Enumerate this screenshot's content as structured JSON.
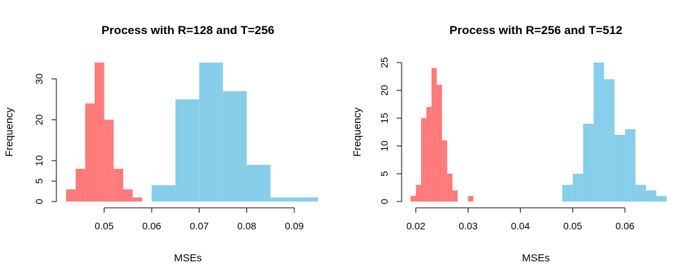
{
  "colors": {
    "red": "#FF7B7B",
    "blue": "#87CEEB"
  },
  "chart_data": [
    {
      "type": "histogram",
      "title": "Process with R=128 and T=256",
      "xlabel": "MSEs",
      "ylabel": "Frequency",
      "xticks": [
        0.05,
        0.06,
        0.07,
        0.08,
        0.09
      ],
      "xtick_labels": [
        "0.05",
        "0.06",
        "0.07",
        "0.08",
        "0.09"
      ],
      "yticks": [
        0,
        5,
        10,
        20,
        30
      ],
      "ytick_labels": [
        "0",
        "5",
        "10",
        "20",
        "30"
      ],
      "xlim": [
        0.042,
        0.095
      ],
      "ylim": [
        0,
        34
      ],
      "series": [
        {
          "color": "#FF7B7B",
          "bins": [
            {
              "x0": 0.042,
              "x1": 0.044,
              "count": 3
            },
            {
              "x0": 0.044,
              "x1": 0.046,
              "count": 8
            },
            {
              "x0": 0.046,
              "x1": 0.048,
              "count": 24
            },
            {
              "x0": 0.048,
              "x1": 0.05,
              "count": 34
            },
            {
              "x0": 0.05,
              "x1": 0.052,
              "count": 20
            },
            {
              "x0": 0.052,
              "x1": 0.054,
              "count": 8
            },
            {
              "x0": 0.054,
              "x1": 0.056,
              "count": 3
            },
            {
              "x0": 0.056,
              "x1": 0.058,
              "count": 1
            }
          ]
        },
        {
          "color": "#87CEEB",
          "bins": [
            {
              "x0": 0.06,
              "x1": 0.065,
              "count": 4
            },
            {
              "x0": 0.065,
              "x1": 0.07,
              "count": 25
            },
            {
              "x0": 0.07,
              "x1": 0.075,
              "count": 34
            },
            {
              "x0": 0.075,
              "x1": 0.08,
              "count": 27
            },
            {
              "x0": 0.08,
              "x1": 0.085,
              "count": 9
            },
            {
              "x0": 0.085,
              "x1": 0.09,
              "count": 1
            },
            {
              "x0": 0.09,
              "x1": 0.095,
              "count": 1
            }
          ]
        }
      ]
    },
    {
      "type": "histogram",
      "title": "Process with R=256 and T=512",
      "xlabel": "MSEs",
      "ylabel": "Frequency",
      "xticks": [
        0.02,
        0.03,
        0.04,
        0.05,
        0.06
      ],
      "xtick_labels": [
        "0.02",
        "0.03",
        "0.04",
        "0.05",
        "0.06"
      ],
      "yticks": [
        0,
        5,
        10,
        15,
        20,
        25
      ],
      "ytick_labels": [
        "0",
        "5",
        "10",
        "15",
        "20",
        "25"
      ],
      "xlim": [
        0.019,
        0.068
      ],
      "ylim": [
        0,
        25
      ],
      "series": [
        {
          "color": "#FF7B7B",
          "bins": [
            {
              "x0": 0.019,
              "x1": 0.02,
              "count": 1
            },
            {
              "x0": 0.02,
              "x1": 0.021,
              "count": 3
            },
            {
              "x0": 0.021,
              "x1": 0.022,
              "count": 15
            },
            {
              "x0": 0.022,
              "x1": 0.023,
              "count": 17
            },
            {
              "x0": 0.023,
              "x1": 0.024,
              "count": 24
            },
            {
              "x0": 0.024,
              "x1": 0.025,
              "count": 21
            },
            {
              "x0": 0.025,
              "x1": 0.026,
              "count": 11
            },
            {
              "x0": 0.026,
              "x1": 0.027,
              "count": 5
            },
            {
              "x0": 0.027,
              "x1": 0.028,
              "count": 2
            },
            {
              "x0": 0.03,
              "x1": 0.031,
              "count": 1
            }
          ]
        },
        {
          "color": "#87CEEB",
          "bins": [
            {
              "x0": 0.048,
              "x1": 0.05,
              "count": 3
            },
            {
              "x0": 0.05,
              "x1": 0.052,
              "count": 5
            },
            {
              "x0": 0.052,
              "x1": 0.054,
              "count": 14
            },
            {
              "x0": 0.054,
              "x1": 0.056,
              "count": 25
            },
            {
              "x0": 0.056,
              "x1": 0.058,
              "count": 22
            },
            {
              "x0": 0.058,
              "x1": 0.06,
              "count": 12
            },
            {
              "x0": 0.06,
              "x1": 0.062,
              "count": 13
            },
            {
              "x0": 0.062,
              "x1": 0.064,
              "count": 3
            },
            {
              "x0": 0.064,
              "x1": 0.066,
              "count": 2
            },
            {
              "x0": 0.066,
              "x1": 0.068,
              "count": 1
            }
          ]
        }
      ]
    }
  ]
}
